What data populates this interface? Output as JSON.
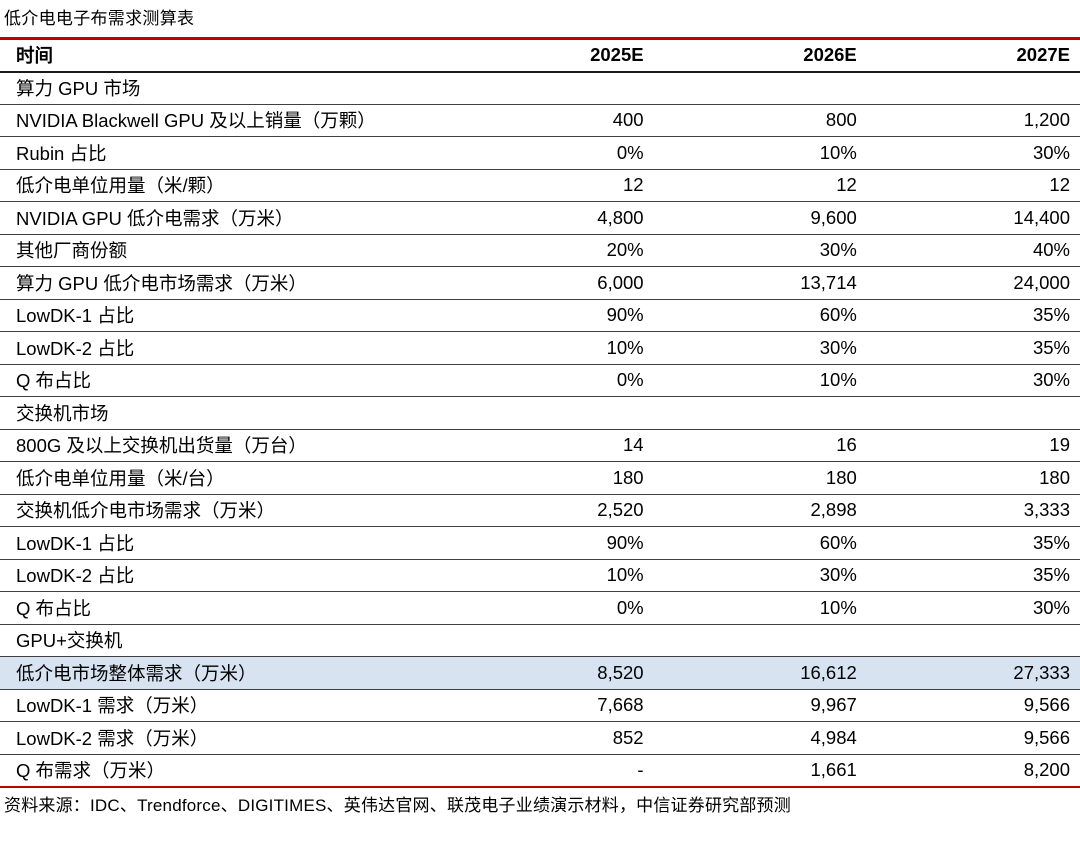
{
  "page_title": "低介电电子布需求测算表",
  "colors": {
    "accent_red": "#C00000",
    "row_divider": "#404040",
    "header_divider": "#1A1A1A",
    "highlight_row_bg": "#D7E3F1",
    "text": "#000000"
  },
  "table": {
    "header": {
      "label": "时间",
      "columns": [
        "2025E",
        "2026E",
        "2027E"
      ]
    },
    "rows": [
      {
        "type": "section",
        "label": "算力 GPU 市场",
        "values": [
          "",
          "",
          ""
        ]
      },
      {
        "type": "data",
        "label": "NVIDIA Blackwell GPU 及以上销量（万颗）",
        "values": [
          "400",
          "800",
          "1,200"
        ]
      },
      {
        "type": "data",
        "label": "Rubin 占比",
        "values": [
          "0%",
          "10%",
          "30%"
        ]
      },
      {
        "type": "data",
        "label": "低介电单位用量（米/颗）",
        "values": [
          "12",
          "12",
          "12"
        ]
      },
      {
        "type": "data",
        "label": "NVIDIA GPU 低介电需求（万米）",
        "values": [
          "4,800",
          "9,600",
          "14,400"
        ]
      },
      {
        "type": "data",
        "label": "其他厂商份额",
        "values": [
          "20%",
          "30%",
          "40%"
        ]
      },
      {
        "type": "data",
        "label": "算力 GPU 低介电市场需求（万米）",
        "values": [
          "6,000",
          "13,714",
          "24,000"
        ]
      },
      {
        "type": "data",
        "label": "LowDK-1 占比",
        "values": [
          "90%",
          "60%",
          "35%"
        ]
      },
      {
        "type": "data",
        "label": "LowDK-2 占比",
        "values": [
          "10%",
          "30%",
          "35%"
        ]
      },
      {
        "type": "data",
        "label": "Q 布占比",
        "values": [
          "0%",
          "10%",
          "30%"
        ]
      },
      {
        "type": "section",
        "label": "交换机市场",
        "values": [
          "",
          "",
          ""
        ]
      },
      {
        "type": "data",
        "label": "800G 及以上交换机出货量（万台）",
        "values": [
          "14",
          "16",
          "19"
        ]
      },
      {
        "type": "data",
        "label": "低介电单位用量（米/台）",
        "values": [
          "180",
          "180",
          "180"
        ]
      },
      {
        "type": "data",
        "label": "交换机低介电市场需求（万米）",
        "values": [
          "2,520",
          "2,898",
          "3,333"
        ]
      },
      {
        "type": "data",
        "label": "LowDK-1 占比",
        "values": [
          "90%",
          "60%",
          "35%"
        ]
      },
      {
        "type": "data",
        "label": "LowDK-2 占比",
        "values": [
          "10%",
          "30%",
          "35%"
        ]
      },
      {
        "type": "data",
        "label": "Q 布占比",
        "values": [
          "0%",
          "10%",
          "30%"
        ]
      },
      {
        "type": "section",
        "label": "GPU+交换机",
        "values": [
          "",
          "",
          ""
        ]
      },
      {
        "type": "data",
        "label": "低介电市场整体需求（万米）",
        "values": [
          "8,520",
          "16,612",
          "27,333"
        ],
        "highlight": true
      },
      {
        "type": "data",
        "label": "LowDK-1 需求（万米）",
        "values": [
          "7,668",
          "9,967",
          "9,566"
        ]
      },
      {
        "type": "data",
        "label": "LowDK-2 需求（万米）",
        "values": [
          "852",
          "4,984",
          "9,566"
        ]
      },
      {
        "type": "data",
        "label": "Q 布需求（万米）",
        "values": [
          "-",
          "1,661",
          "8,200"
        ]
      }
    ]
  },
  "footer": {
    "source_note": "资料来源：IDC、Trendforce、DIGITIMES、英伟达官网、联茂电子业绩演示材料，中信证券研究部预测"
  }
}
